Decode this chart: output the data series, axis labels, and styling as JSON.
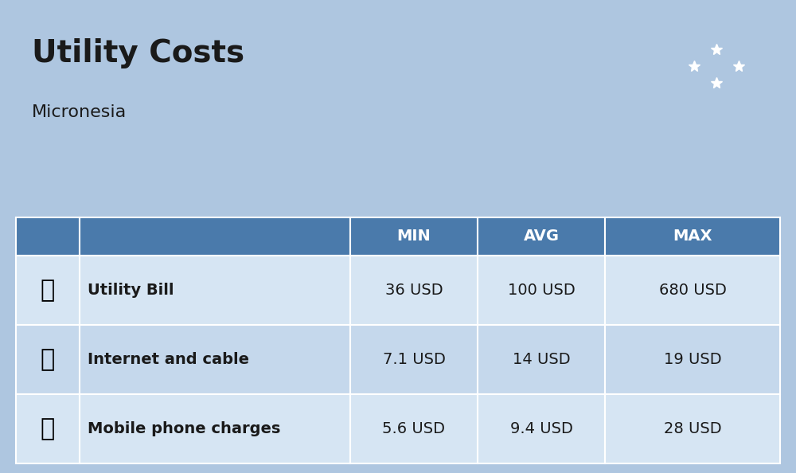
{
  "title": "Utility Costs",
  "subtitle": "Micronesia",
  "background_color": "#aec6e0",
  "header_color": "#4a7aab",
  "header_text_color": "#ffffff",
  "row_color_1": "#c5d8ec",
  "row_color_2": "#d6e5f3",
  "icon_col_color": "#b8cfe0",
  "text_color": "#1a1a1a",
  "columns": [
    "",
    "",
    "MIN",
    "AVG",
    "MAX"
  ],
  "rows": [
    {
      "label": "Utility Bill",
      "min": "36 USD",
      "avg": "100 USD",
      "max": "680 USD"
    },
    {
      "label": "Internet and cable",
      "min": "7.1 USD",
      "avg": "14 USD",
      "max": "19 USD"
    },
    {
      "label": "Mobile phone charges",
      "min": "5.6 USD",
      "avg": "9.4 USD",
      "max": "28 USD"
    }
  ],
  "flag_color": "#7fb3d9",
  "title_fontsize": 28,
  "subtitle_fontsize": 16,
  "header_fontsize": 14,
  "cell_fontsize": 14,
  "label_fontsize": 14
}
